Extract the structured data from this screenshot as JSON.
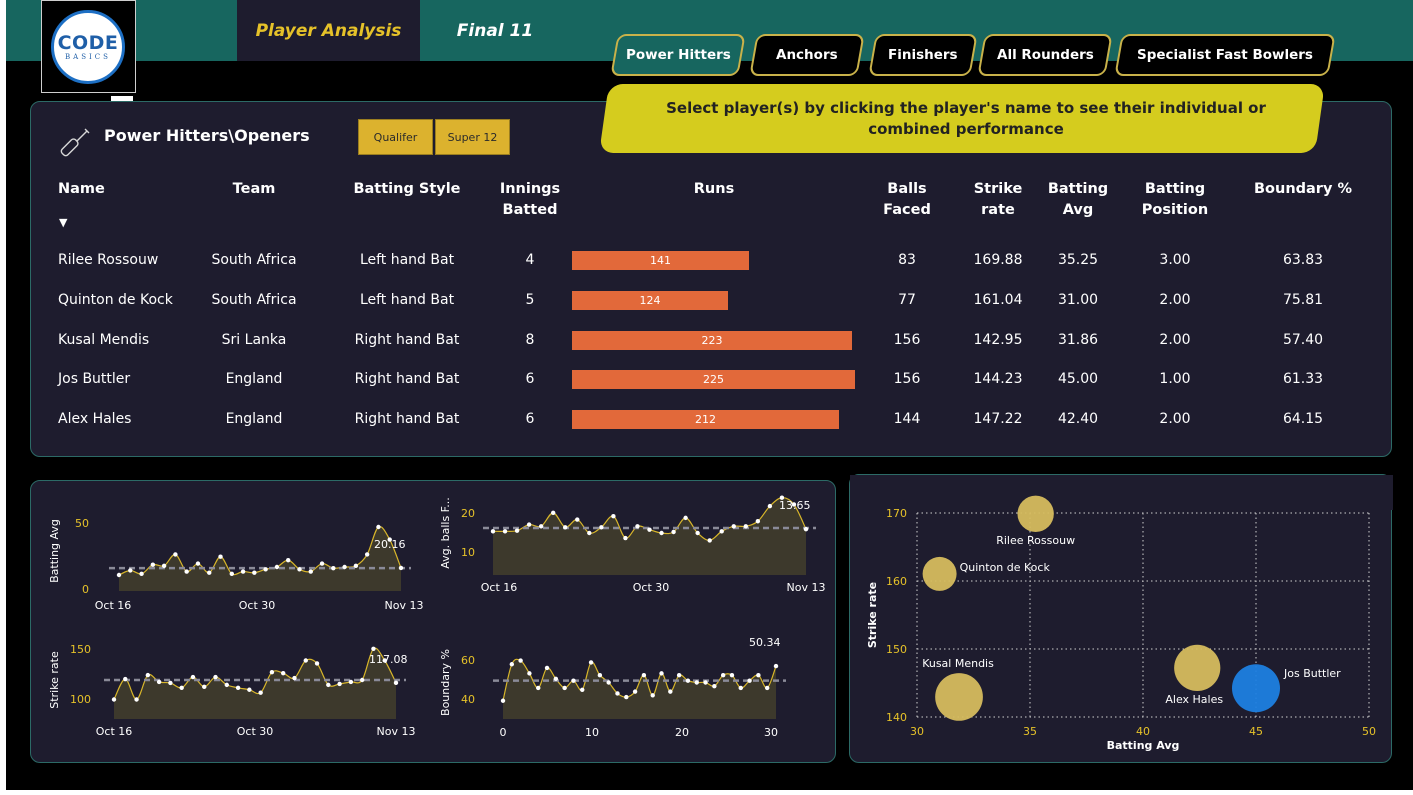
{
  "logo": {
    "line1": "CODE",
    "line2": "BASICS"
  },
  "page_tabs": {
    "analysis": "Player Analysis",
    "final": "Final 11"
  },
  "more_options": "···",
  "categories": [
    "Power Hitters",
    "Anchors",
    "Finishers",
    "All Rounders",
    "Specialist Fast Bowlers"
  ],
  "info_banner": "Select player(s) by clicking the player's name to see their individual or combined performance",
  "table": {
    "title": "Power Hitters\\Openers",
    "filters": [
      "Qualifer",
      "Super 12"
    ],
    "headers": [
      "Name",
      "Team",
      "Batting Style",
      "Innings Batted",
      "Runs",
      "Balls Faced",
      "Strike rate",
      "Batting Avg",
      "Batting Position",
      "Boundary %"
    ],
    "sort_indicator": "▼",
    "rows": [
      {
        "name": "Rilee Rossouw",
        "team": "South Africa",
        "style": "Left hand Bat",
        "innings": "4",
        "runs": 141,
        "balls": "83",
        "sr": "169.88",
        "avg": "35.25",
        "pos": "3.00",
        "boundary": "63.83"
      },
      {
        "name": "Quinton de Kock",
        "team": "South Africa",
        "style": "Left hand Bat",
        "innings": "5",
        "runs": 124,
        "balls": "77",
        "sr": "161.04",
        "avg": "31.00",
        "pos": "2.00",
        "boundary": "75.81"
      },
      {
        "name": "Kusal Mendis",
        "team": "Sri Lanka",
        "style": "Right hand Bat",
        "innings": "8",
        "runs": 223,
        "balls": "156",
        "sr": "142.95",
        "avg": "31.86",
        "pos": "2.00",
        "boundary": "57.40"
      },
      {
        "name": "Jos Buttler",
        "team": "England",
        "style": "Right hand Bat",
        "innings": "6",
        "runs": 225,
        "balls": "156",
        "sr": "144.23",
        "avg": "45.00",
        "pos": "1.00",
        "boundary": "61.33"
      },
      {
        "name": "Alex Hales",
        "team": "England",
        "style": "Right hand Bat",
        "innings": "6",
        "runs": 212,
        "balls": "144",
        "sr": "147.22",
        "avg": "42.40",
        "pos": "2.00",
        "boundary": "64.15"
      }
    ],
    "runs_max": 225
  },
  "colors": {
    "accent": "#e6c229",
    "teal": "#17665f",
    "bar": "#e2693a",
    "bubble": "#d6bc5e",
    "bubble_selected": "#1e7fe0",
    "panel": "#1e1c2e"
  },
  "chart_data": [
    {
      "type": "area",
      "ylabel": "Batting Avg",
      "x_ticks": [
        "Oct 16",
        "Oct 30",
        "Nov 13"
      ],
      "y_ticks": [
        "0",
        "50"
      ],
      "ylim": [
        0,
        70
      ],
      "values": [
        14,
        18,
        15,
        23,
        22,
        32,
        17,
        24,
        16,
        30,
        15,
        17,
        16,
        19,
        21,
        27,
        19,
        17,
        24,
        20,
        21,
        22,
        32,
        56,
        45,
        20.16
      ],
      "avg_line": 20,
      "last_label": "20.16"
    },
    {
      "type": "area",
      "ylabel": "Avg. balls F...",
      "x_ticks": [
        "Oct 16",
        "Oct 30",
        "Nov 13"
      ],
      "y_ticks": [
        "10",
        "20"
      ],
      "ylim": [
        0,
        25
      ],
      "values": [
        13,
        13,
        13.2,
        15,
        14.5,
        18.5,
        14.2,
        16.5,
        12.5,
        14.2,
        17.5,
        11,
        14.5,
        13.5,
        12.5,
        12.8,
        17,
        12.5,
        10.3,
        13,
        14.5,
        14.5,
        16,
        20.5,
        23,
        21,
        13.65
      ],
      "avg_line": 14,
      "last_label": "13.65"
    },
    {
      "type": "area",
      "ylabel": "Strike rate",
      "x_ticks": [
        "Oct 16",
        "Oct 30",
        "Nov 13"
      ],
      "y_ticks": [
        "100",
        "150"
      ],
      "ylim": [
        80,
        160
      ],
      "values": [
        100,
        121,
        100,
        125,
        118,
        117,
        112,
        123,
        113,
        123,
        115,
        112,
        110,
        107,
        128,
        127,
        122,
        140,
        137,
        115,
        116,
        118,
        120,
        152,
        140,
        117.08
      ],
      "avg_line": 120,
      "last_label": "117.08"
    },
    {
      "type": "area",
      "ylabel": "Boundary %",
      "x_ticks": [
        "0",
        "10",
        "20",
        "30"
      ],
      "y_ticks": [
        "40",
        "60"
      ],
      "ylim": [
        30,
        70
      ],
      "x": [
        0,
        1,
        2,
        3,
        4,
        5,
        6,
        7,
        8,
        9,
        10,
        11,
        12,
        13,
        14,
        15,
        16,
        17,
        18,
        19,
        20,
        21,
        22,
        23,
        24,
        25,
        26,
        27,
        28,
        29,
        30,
        31
      ],
      "values": [
        40,
        60,
        62,
        55,
        47,
        58,
        52,
        47,
        51,
        46,
        61,
        54,
        50,
        44,
        42,
        45,
        54,
        43,
        55,
        45,
        54,
        51,
        50,
        50,
        48,
        54,
        54,
        47,
        51,
        54,
        47,
        59
      ],
      "avg_line": 51,
      "last_label": "50.34"
    },
    {
      "type": "scatter",
      "xlabel": "Batting Avg",
      "ylabel": "Strike rate",
      "xlim": [
        30,
        50
      ],
      "ylim": [
        140,
        170
      ],
      "x_ticks": [
        "30",
        "35",
        "40",
        "45",
        "50"
      ],
      "y_ticks": [
        "140",
        "150",
        "160",
        "170"
      ],
      "points": [
        {
          "label": "Rilee Rossouw",
          "x": 35.25,
          "y": 169.88,
          "size": 141,
          "selected": false
        },
        {
          "label": "Quinton de Kock",
          "x": 31.0,
          "y": 161.04,
          "size": 124,
          "selected": false
        },
        {
          "label": "Kusal Mendis",
          "x": 31.86,
          "y": 142.95,
          "size": 223,
          "selected": false
        },
        {
          "label": "Jos Buttler",
          "x": 45.0,
          "y": 144.23,
          "size": 225,
          "selected": true
        },
        {
          "label": "Alex Hales",
          "x": 42.4,
          "y": 147.22,
          "size": 212,
          "selected": false
        }
      ]
    }
  ]
}
